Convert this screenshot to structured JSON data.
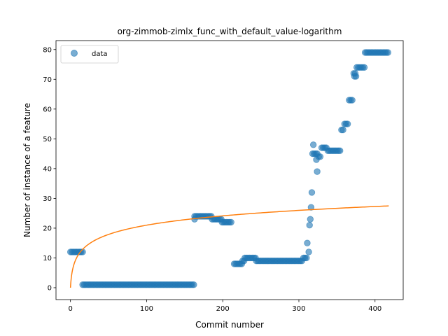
{
  "chart_data": {
    "type": "scatter",
    "title": "org-zimmob-zimlx_func_with_default_value-logarithm",
    "xlabel": "Commit number",
    "ylabel": "Number of instance of a feature",
    "xlim": [
      -19,
      437
    ],
    "ylim": [
      -4,
      83
    ],
    "xticks": [
      0,
      100,
      200,
      300,
      400
    ],
    "yticks": [
      0,
      10,
      20,
      30,
      40,
      50,
      60,
      70,
      80
    ],
    "grid": false,
    "legend": {
      "position": "top-left",
      "entries": [
        "data"
      ]
    },
    "colors": {
      "data": "#1f77b4",
      "fit": "#ff7f0e"
    },
    "series": [
      {
        "name": "data",
        "kind": "scatter",
        "segments": [
          {
            "x_start": 0,
            "x_end": 17,
            "step": 2,
            "y": 12
          },
          {
            "x_start": 16,
            "x_end": 163,
            "step": 2,
            "y": 1
          },
          {
            "x_start": 163,
            "x_end": 185,
            "step": 2,
            "y": 24
          },
          {
            "x_start": 186,
            "x_end": 198,
            "step": 2,
            "y": 23
          },
          {
            "x_start": 199,
            "x_end": 212,
            "step": 2,
            "y": 22
          },
          {
            "x_start": 215,
            "x_end": 225,
            "step": 2,
            "y": 8
          },
          {
            "x_start": 226,
            "x_end": 228,
            "step": 2,
            "y": 9
          },
          {
            "x_start": 229,
            "x_end": 244,
            "step": 2,
            "y": 10
          },
          {
            "x_start": 244,
            "x_end": 305,
            "step": 2,
            "y": 9
          },
          {
            "x_start": 306,
            "x_end": 310,
            "step": 2,
            "y": 10
          },
          {
            "x_start": 320,
            "x_end": 325,
            "step": 2,
            "y": 45
          },
          {
            "x_start": 330,
            "x_end": 337,
            "step": 2,
            "y": 47
          },
          {
            "x_start": 338,
            "x_end": 355,
            "step": 2,
            "y": 46
          },
          {
            "x_start": 356,
            "x_end": 359,
            "step": 2,
            "y": 53
          },
          {
            "x_start": 360,
            "x_end": 365,
            "step": 2,
            "y": 55
          },
          {
            "x_start": 366,
            "x_end": 370,
            "step": 2,
            "y": 63
          },
          {
            "x_start": 376,
            "x_end": 386,
            "step": 2,
            "y": 74
          },
          {
            "x_start": 387,
            "x_end": 418,
            "step": 2,
            "y": 79
          }
        ],
        "points": [
          [
            163,
            23
          ],
          [
            311,
            15
          ],
          [
            313,
            12
          ],
          [
            314,
            21
          ],
          [
            315,
            23
          ],
          [
            316,
            27
          ],
          [
            317,
            32
          ],
          [
            318,
            45
          ],
          [
            319,
            48
          ],
          [
            323,
            43
          ],
          [
            324,
            39
          ],
          [
            326,
            44
          ],
          [
            328,
            44
          ],
          [
            372,
            72
          ],
          [
            373,
            71
          ],
          [
            374,
            72
          ],
          [
            375,
            71
          ]
        ]
      },
      {
        "name": "",
        "kind": "line",
        "function": "a*ln(x+1)+b",
        "a": 4.55,
        "b": 0,
        "x_range": [
          0,
          418
        ]
      }
    ]
  }
}
